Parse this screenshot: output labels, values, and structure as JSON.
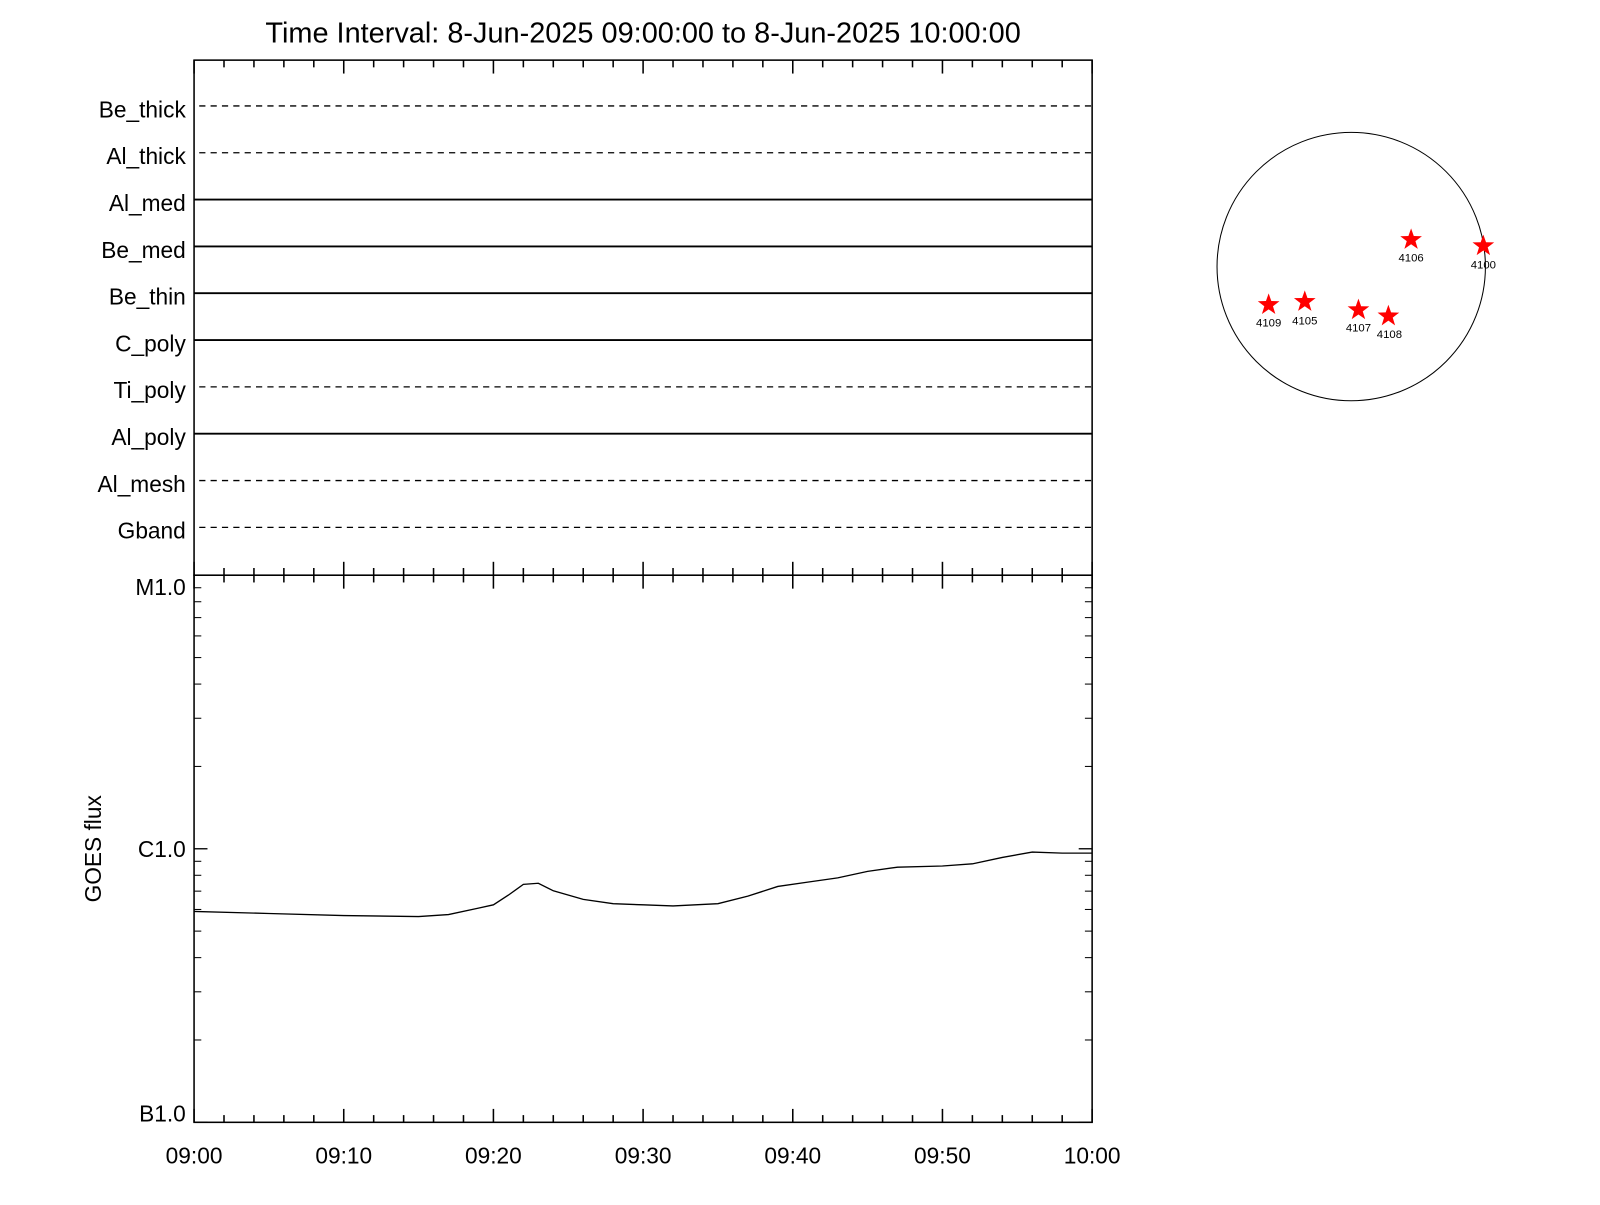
{
  "title": "Time Interval:  8-Jun-2025 09:00:00 to  8-Jun-2025 10:00:00",
  "filters": [
    {
      "name": "Be_thick",
      "style": "dashed"
    },
    {
      "name": "Al_thick",
      "style": "dashed"
    },
    {
      "name": "Al_med",
      "style": "solid"
    },
    {
      "name": "Be_med",
      "style": "solid"
    },
    {
      "name": "Be_thin",
      "style": "solid"
    },
    {
      "name": "C_poly",
      "style": "solid"
    },
    {
      "name": "Ti_poly",
      "style": "dashed"
    },
    {
      "name": "Al_poly",
      "style": "solid"
    },
    {
      "name": "Al_mesh",
      "style": "dashed"
    },
    {
      "name": "Gband",
      "style": "dashed"
    }
  ],
  "active_regions": [
    "4106",
    "4100",
    "4109",
    "4105",
    "4107",
    "4108"
  ],
  "chart_data": {
    "type": "line",
    "y_label": "GOES flux",
    "log_y": true,
    "color": "#000000",
    "x": [
      "09:00",
      "09:05",
      "09:10",
      "09:15",
      "09:17",
      "09:19",
      "09:20",
      "09:21",
      "09:22",
      "09:23",
      "09:24",
      "09:26",
      "09:28",
      "09:30",
      "09:32",
      "09:35",
      "09:37",
      "09:39",
      "09:41",
      "09:43",
      "09:45",
      "09:47",
      "09:50",
      "09:52",
      "09:54",
      "09:56",
      "09:58",
      "10:00"
    ],
    "values": [
      5.9e-07,
      5.8e-07,
      5.7e-07,
      5.65e-07,
      5.75e-07,
      6.07e-07,
      6.24e-07,
      6.77e-07,
      7.41e-07,
      7.48e-07,
      7.02e-07,
      6.53e-07,
      6.3e-07,
      6.24e-07,
      6.18e-07,
      6.3e-07,
      6.71e-07,
      7.28e-07,
      7.55e-07,
      7.83e-07,
      8.27e-07,
      8.57e-07,
      8.65e-07,
      8.81e-07,
      9.3e-07,
      9.73e-07,
      9.64e-07,
      9.64e-07
    ],
    "xlim": [
      "09:00",
      "10:00"
    ],
    "xticks": [
      "09:00",
      "09:10",
      "09:20",
      "09:30",
      "09:40",
      "09:50",
      "10:00"
    ],
    "xminorticks": [
      "09:02",
      "09:04",
      "09:06",
      "09:08",
      "09:12",
      "09:14",
      "09:16",
      "09:18",
      "09:22",
      "09:24",
      "09:26",
      "09:28",
      "09:32",
      "09:34",
      "09:36",
      "09:38",
      "09:42",
      "09:44",
      "09:46",
      "09:48",
      "09:52",
      "09:54",
      "09:56",
      "09:58"
    ],
    "ylim": [
      1e-07,
      1e-05
    ],
    "yticks": [
      {
        "value": 1e-07,
        "label": "B1.0"
      },
      {
        "value": 1e-06,
        "label": "C1.0"
      },
      {
        "value": 1e-05,
        "label": "M1.0"
      }
    ],
    "yminorticks": [
      2e-07,
      3e-07,
      4e-07,
      5e-07,
      6e-07,
      7e-07,
      8e-07,
      9e-07,
      2e-06,
      3e-06,
      4e-06,
      5e-06,
      6e-06,
      7e-06,
      8e-06,
      9e-06
    ]
  }
}
